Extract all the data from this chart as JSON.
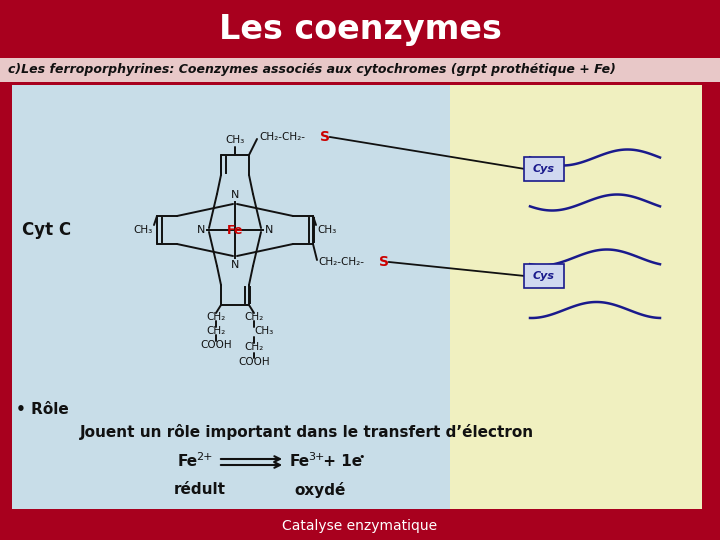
{
  "title": "Les coenzymes",
  "title_bg": "#a8001e",
  "title_color": "#ffffff",
  "subtitle": "c)Les ferroporphyrines: Coenzymes associés aux cytochromes (grpt prothétique + Fe)",
  "subtitle_color": "#111111",
  "subtitle_bg": "#e8c8c8",
  "footer": "Catalyse enzymatique",
  "footer_bg": "#a8001e",
  "footer_color": "#ffffff",
  "main_bg": "#c8dde8",
  "main_bg_right": "#f0f0c0",
  "role_text": "• Rôle",
  "role_detail": "Jouent un rôle important dans le transfert d’électron",
  "redult": "rédult",
  "oxyde": "oxydé",
  "cyt_c": "Cyt C"
}
